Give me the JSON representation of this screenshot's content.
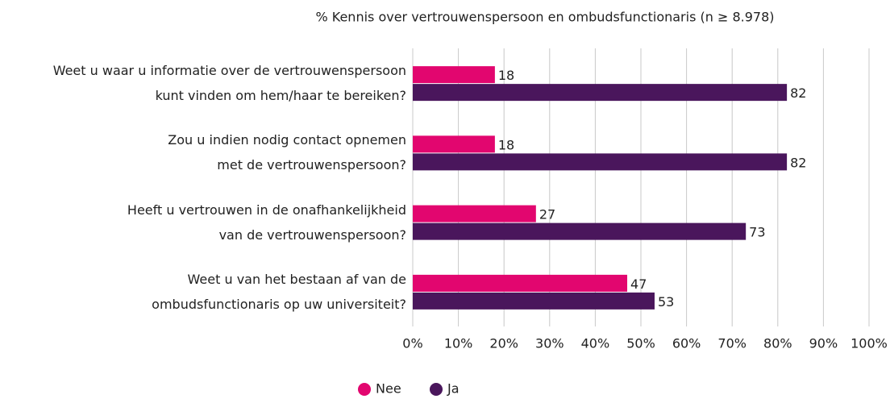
{
  "chart_data": {
    "type": "bar",
    "orientation": "horizontal",
    "title": "% Kennis over vertrouwenspersoon en ombudsfunctionaris (n ≥ 8.978)",
    "categories": [
      "Weet u waar u informatie over de vertrouwenspersoon\nkunt vinden om hem/haar te bereiken?",
      "Zou u indien nodig contact opnemen\nmet de vertrouwenspersoon?",
      "Heeft u vertrouwen in de onafhankelijkheid\nvan de vertrouwenspersoon?",
      "Weet u van het bestaan af van de\nombudsfunctionaris op uw universiteit?"
    ],
    "series": [
      {
        "name": "Nee",
        "color": "#e2066f",
        "values": [
          18,
          18,
          27,
          47
        ]
      },
      {
        "name": "Ja",
        "color": "#4a165c",
        "values": [
          82,
          82,
          73,
          53
        ]
      }
    ],
    "xlim": [
      0,
      100
    ],
    "xticks": [
      {
        "value": 0,
        "label": "0%"
      },
      {
        "value": 10,
        "label": "10%"
      },
      {
        "value": 20,
        "label": "20%"
      },
      {
        "value": 30,
        "label": "30%"
      },
      {
        "value": 40,
        "label": "40%"
      },
      {
        "value": 50,
        "label": "50%"
      },
      {
        "value": 60,
        "label": "60%"
      },
      {
        "value": 70,
        "label": "70%"
      },
      {
        "value": 80,
        "label": "80%"
      },
      {
        "value": 90,
        "label": "90%"
      },
      {
        "value": 100,
        "label": "100%"
      }
    ],
    "grid": true,
    "legend": "bottom"
  }
}
